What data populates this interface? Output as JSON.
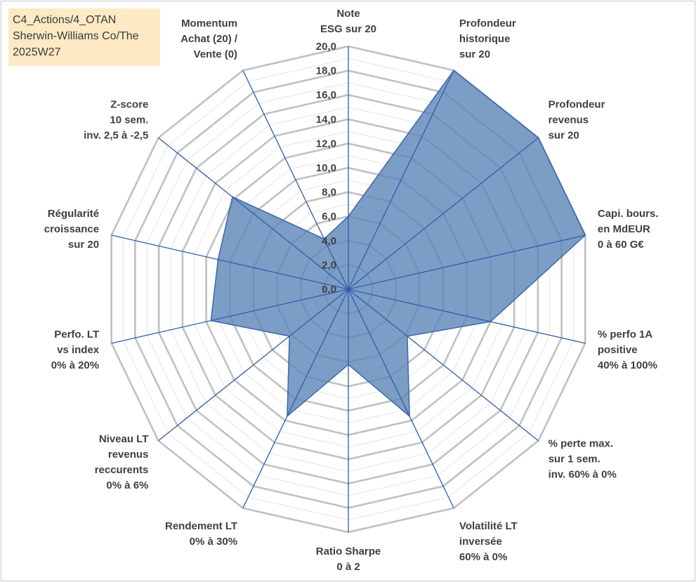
{
  "title_box": {
    "lines": [
      "C4_Actions/4_OTAN",
      "Sherwin-Williams Co/The",
      "2025W27"
    ]
  },
  "colors": {
    "fill": "#5b84b8",
    "stroke": "#3d69a8",
    "spoke": "#2f5ea8",
    "major_grid": "#c0c0c0",
    "minor_grid": "#e4e4e4",
    "title_bg": "#fde9c4"
  },
  "chart_data": {
    "type": "radar",
    "rmin": 0,
    "rmax": 20,
    "major_step": 2,
    "tick_labels": [
      "0,0",
      "2,0",
      "4,0",
      "6,0",
      "8,0",
      "10,0",
      "12,0",
      "14,0",
      "16,0",
      "18,0",
      "20,0"
    ],
    "axes": [
      [
        "Note",
        "ESG sur 20"
      ],
      [
        "Profondeur",
        "historique",
        "sur 20"
      ],
      [
        "Profondeur",
        "revenus",
        "sur 20"
      ],
      [
        "Capi. bours.",
        "en MdEUR",
        "0 à 60 G€"
      ],
      [
        "% perfo 1A",
        "positive",
        "40% à 100%"
      ],
      [
        "% perte max.",
        "sur 1 sem.",
        "inv. 60% à 0%"
      ],
      [
        "Volatilité LT",
        "inversée",
        "60% à 0%"
      ],
      [
        "Ratio Sharpe",
        "0 à 2"
      ],
      [
        "Rendement LT",
        "0% à 30%"
      ],
      [
        "Niveau LT",
        "revenus",
        "reccurents",
        "0% à 6%"
      ],
      [
        "Perfo. LT",
        "vs index",
        "0% à 20%"
      ],
      [
        "Régularité",
        "croissance",
        "sur 20"
      ],
      [
        "Z-score",
        "10 sem.",
        "inv. 2,5 à -2,5"
      ],
      [
        "Momentum",
        "Achat (20) /",
        "Vente (0)"
      ]
    ],
    "series": [
      {
        "values": [
          6.0,
          20.0,
          20.0,
          20.0,
          12.0,
          6.2,
          11.6,
          6.2,
          11.6,
          6.2,
          11.6,
          11.0,
          12.2,
          4.6
        ]
      }
    ],
    "grid": true
  }
}
